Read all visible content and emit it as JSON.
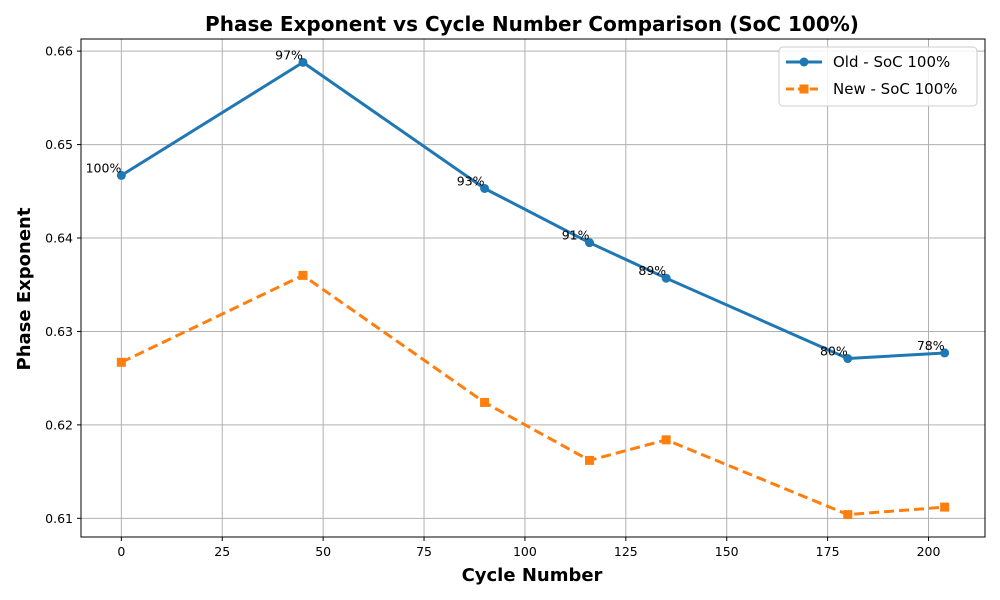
{
  "chart_data": {
    "type": "line",
    "title": "Phase Exponent vs Cycle Number Comparison (SoC 100%)",
    "xlabel": "Cycle Number",
    "ylabel": "Phase Exponent",
    "xlim": [
      -10,
      214
    ],
    "ylim": [
      0.608,
      0.6613
    ],
    "xticks": [
      0,
      25,
      50,
      75,
      100,
      125,
      150,
      175,
      200
    ],
    "yticks": [
      0.61,
      0.62,
      0.63,
      0.64,
      0.65,
      0.66
    ],
    "grid": true,
    "legend_position": "top-right",
    "series": [
      {
        "name": "Old - SoC 100%",
        "color": "#1f77b4",
        "marker": "circle",
        "linestyle": "solid",
        "x": [
          0,
          45,
          90,
          116,
          135,
          180,
          204
        ],
        "y": [
          0.6467,
          0.6588,
          0.6453,
          0.6395,
          0.6357,
          0.6271,
          0.6277
        ],
        "annotations": [
          "100%",
          "97%",
          "93%",
          "91%",
          "89%",
          "80%",
          "78%"
        ]
      },
      {
        "name": "New - SoC 100%",
        "color": "#ff7f0e",
        "marker": "square",
        "linestyle": "dashed",
        "x": [
          0,
          45,
          90,
          116,
          135,
          180,
          204
        ],
        "y": [
          0.6267,
          0.636,
          0.6224,
          0.6162,
          0.6184,
          0.6104,
          0.6112
        ]
      }
    ]
  }
}
